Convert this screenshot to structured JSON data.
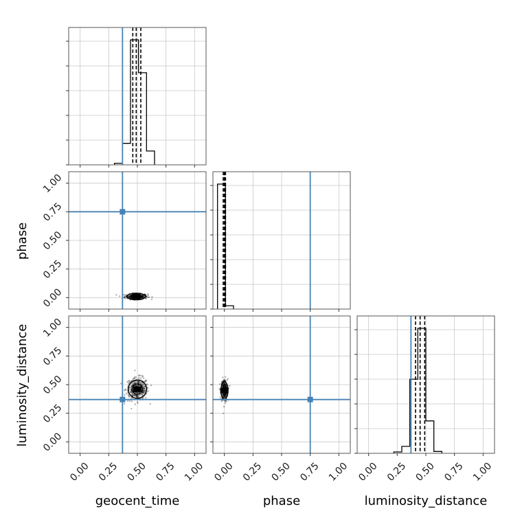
{
  "chart_data": {
    "type": "corner",
    "parameters": [
      "geocent_time",
      "phase",
      "luminosity_distance"
    ],
    "axis_range": [
      -0.1,
      1.1
    ],
    "tick_values": [
      0.0,
      0.25,
      0.5,
      0.75,
      1.0
    ],
    "tick_labels": [
      "0.00",
      "0.25",
      "0.50",
      "0.75",
      "1.00"
    ],
    "grid": true,
    "truths": {
      "geocent_time": 0.37,
      "phase": 0.75,
      "luminosity_distance": 0.37
    },
    "truth_color": "#4682b4",
    "histograms": {
      "geocent_time": {
        "bin_edges": [
          0.3,
          0.37,
          0.44,
          0.51,
          0.58,
          0.65
        ],
        "counts": [
          5,
          70,
          407,
          300,
          45
        ],
        "quantiles": [
          0.46,
          0.49,
          0.53
        ]
      },
      "phase": {
        "bin_edges": [
          -0.06,
          0.01,
          0.08
        ],
        "counts": [
          560,
          15
        ],
        "quantiles": [
          -0.01,
          0.0,
          0.01
        ]
      },
      "luminosity_distance": {
        "bin_edges": [
          0.22,
          0.29,
          0.36,
          0.43,
          0.5,
          0.57,
          0.64
        ],
        "counts": [
          3,
          15,
          160,
          270,
          70,
          4
        ],
        "quantiles": [
          0.41,
          0.45,
          0.49
        ]
      }
    },
    "scatter_2d": [
      {
        "x": "geocent_time",
        "y": "phase",
        "center": [
          0.49,
          0.01
        ],
        "spread": [
          0.05,
          0.012
        ]
      },
      {
        "x": "geocent_time",
        "y": "luminosity_distance",
        "center": [
          0.5,
          0.46
        ],
        "spread": [
          0.05,
          0.05
        ]
      },
      {
        "x": "phase",
        "y": "luminosity_distance",
        "center": [
          0.0,
          0.45
        ],
        "spread": [
          0.015,
          0.05
        ]
      }
    ]
  }
}
